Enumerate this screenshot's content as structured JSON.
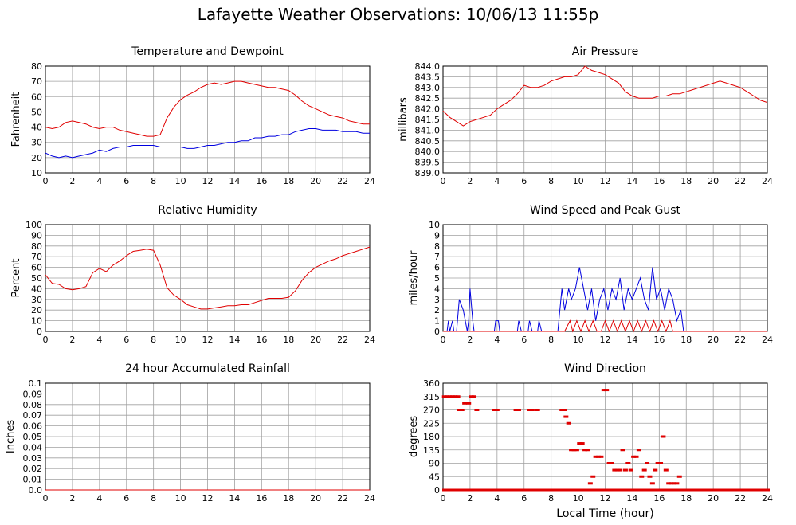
{
  "page": {
    "title": "Lafayette Weather Observations: 10/06/13 11:55p",
    "xlabel_bottom": "Local Time (hour)"
  },
  "colors": {
    "red": "#e00000",
    "blue": "#0000e0",
    "grid": "#a0a0a0"
  },
  "chart_data": [
    {
      "id": "temp",
      "type": "line",
      "title": "Temperature and Dewpoint",
      "ylabel": "Fahrenheit",
      "xlabel": "",
      "xlim": [
        0,
        24
      ],
      "ylim": [
        10,
        80
      ],
      "xticks": [
        0,
        2,
        4,
        6,
        8,
        10,
        12,
        14,
        16,
        18,
        20,
        22,
        24
      ],
      "yticks": [
        10,
        20,
        30,
        40,
        50,
        60,
        70,
        80
      ],
      "grid": true,
      "series": [
        {
          "color": "red",
          "x": [
            0,
            0.5,
            1,
            1.5,
            2,
            2.5,
            3,
            3.5,
            4,
            4.5,
            5,
            5.5,
            6,
            6.5,
            7,
            7.5,
            8,
            8.5,
            9,
            9.5,
            10,
            10.5,
            11,
            11.5,
            12,
            12.5,
            13,
            13.5,
            14,
            14.5,
            15,
            15.5,
            16,
            16.5,
            17,
            17.5,
            18,
            18.5,
            19,
            19.5,
            20,
            20.5,
            21,
            21.5,
            22,
            22.5,
            23,
            23.5,
            24
          ],
          "y": [
            40,
            39,
            40,
            43,
            44,
            43,
            42,
            40,
            39,
            40,
            40,
            38,
            37,
            36,
            35,
            34,
            34,
            35,
            46,
            53,
            58,
            61,
            63,
            66,
            68,
            69,
            68,
            69,
            70,
            70,
            69,
            68,
            67,
            66,
            66,
            65,
            64,
            61,
            57,
            54,
            52,
            50,
            48,
            47,
            46,
            44,
            43,
            42,
            42
          ]
        },
        {
          "color": "blue",
          "x": [
            0,
            0.5,
            1,
            1.5,
            2,
            2.5,
            3,
            3.5,
            4,
            4.5,
            5,
            5.5,
            6,
            6.5,
            7,
            7.5,
            8,
            8.5,
            9,
            9.5,
            10,
            10.5,
            11,
            11.5,
            12,
            12.5,
            13,
            13.5,
            14,
            14.5,
            15,
            15.5,
            16,
            16.5,
            17,
            17.5,
            18,
            18.5,
            19,
            19.5,
            20,
            20.5,
            21,
            21.5,
            22,
            22.5,
            23,
            23.5,
            24
          ],
          "y": [
            23,
            21,
            20,
            21,
            20,
            21,
            22,
            23,
            25,
            24,
            26,
            27,
            27,
            28,
            28,
            28,
            28,
            27,
            27,
            27,
            27,
            26,
            26,
            27,
            28,
            28,
            29,
            30,
            30,
            31,
            31,
            33,
            33,
            34,
            34,
            35,
            35,
            37,
            38,
            39,
            39,
            38,
            38,
            38,
            37,
            37,
            37,
            36,
            36
          ]
        }
      ]
    },
    {
      "id": "pressure",
      "type": "line",
      "title": "Air Pressure",
      "ylabel": "millibars",
      "xlabel": "",
      "xlim": [
        0,
        24
      ],
      "ylim": [
        839.0,
        844.0
      ],
      "xticks": [
        0,
        2,
        4,
        6,
        8,
        10,
        12,
        14,
        16,
        18,
        20,
        22,
        24
      ],
      "yticks": [
        "839.0",
        "839.5",
        "840.0",
        "840.5",
        "841.0",
        "841.5",
        "842.0",
        "842.5",
        "843.0",
        "843.5",
        "844.0"
      ],
      "grid": true,
      "series": [
        {
          "color": "red",
          "x": [
            0,
            0.5,
            1,
            1.5,
            2,
            2.5,
            3,
            3.5,
            4,
            4.5,
            5,
            5.5,
            6,
            6.5,
            7,
            7.5,
            8,
            8.5,
            9,
            9.5,
            10,
            10.5,
            11,
            11.5,
            12,
            12.5,
            13,
            13.5,
            14,
            14.5,
            15,
            15.5,
            16,
            16.5,
            17,
            17.5,
            18,
            18.5,
            19,
            19.5,
            20,
            20.5,
            21,
            21.5,
            22,
            22.5,
            23,
            23.5,
            24
          ],
          "y": [
            841.9,
            841.6,
            841.4,
            841.2,
            841.4,
            841.5,
            841.6,
            841.7,
            842.0,
            842.2,
            842.4,
            842.7,
            843.1,
            843.0,
            843.0,
            843.1,
            843.3,
            843.4,
            843.5,
            843.5,
            843.6,
            844.0,
            843.8,
            843.7,
            843.6,
            843.4,
            843.2,
            842.8,
            842.6,
            842.5,
            842.5,
            842.5,
            842.6,
            842.6,
            842.7,
            842.7,
            842.8,
            842.9,
            843.0,
            843.1,
            843.2,
            843.3,
            843.2,
            843.1,
            843.0,
            842.8,
            842.6,
            842.4,
            842.3
          ]
        }
      ]
    },
    {
      "id": "humidity",
      "type": "line",
      "title": "Relative Humidity",
      "ylabel": "Percent",
      "xlabel": "",
      "xlim": [
        0,
        24
      ],
      "ylim": [
        0,
        100
      ],
      "xticks": [
        0,
        2,
        4,
        6,
        8,
        10,
        12,
        14,
        16,
        18,
        20,
        22,
        24
      ],
      "yticks": [
        0,
        10,
        20,
        30,
        40,
        50,
        60,
        70,
        80,
        90,
        100
      ],
      "grid": true,
      "series": [
        {
          "color": "red",
          "x": [
            0,
            0.5,
            1,
            1.5,
            2,
            2.5,
            3,
            3.5,
            4,
            4.5,
            5,
            5.5,
            6,
            6.5,
            7,
            7.5,
            8,
            8.5,
            9,
            9.5,
            10,
            10.5,
            11,
            11.5,
            12,
            12.5,
            13,
            13.5,
            14,
            14.5,
            15,
            15.5,
            16,
            16.5,
            17,
            17.5,
            18,
            18.5,
            19,
            19.5,
            20,
            20.5,
            21,
            21.5,
            22,
            22.5,
            23,
            23.5,
            24
          ],
          "y": [
            53,
            45,
            44,
            40,
            39,
            40,
            42,
            55,
            59,
            56,
            62,
            66,
            71,
            75,
            76,
            77,
            76,
            62,
            41,
            34,
            30,
            25,
            23,
            21,
            21,
            22,
            23,
            24,
            24,
            25,
            25,
            27,
            29,
            31,
            31,
            31,
            32,
            38,
            48,
            55,
            60,
            63,
            66,
            68,
            71,
            73,
            75,
            77,
            79
          ]
        }
      ]
    },
    {
      "id": "wind",
      "type": "line",
      "title": "Wind Speed and Peak Gust",
      "ylabel": "miles/hour",
      "xlabel": "",
      "xlim": [
        0,
        24
      ],
      "ylim": [
        0,
        10
      ],
      "xticks": [
        0,
        2,
        4,
        6,
        8,
        10,
        12,
        14,
        16,
        18,
        20,
        22,
        24
      ],
      "yticks": [
        0,
        1,
        2,
        3,
        4,
        5,
        6,
        7,
        8,
        9,
        10
      ],
      "grid": true,
      "series": [
        {
          "color": "blue",
          "x": [
            0,
            0.3,
            0.4,
            0.5,
            0.7,
            0.8,
            1.0,
            1.2,
            1.5,
            1.8,
            1.9,
            2.0,
            2.2,
            2.3,
            3.8,
            3.9,
            4.1,
            4.2,
            5.5,
            5.6,
            5.8,
            6.3,
            6.4,
            6.6,
            7.0,
            7.1,
            7.3,
            8.5,
            8.8,
            9.0,
            9.3,
            9.5,
            9.8,
            10.1,
            10.4,
            10.7,
            11.0,
            11.3,
            11.6,
            11.9,
            12.2,
            12.5,
            12.8,
            13.1,
            13.4,
            13.7,
            14.0,
            14.3,
            14.6,
            14.9,
            15.2,
            15.5,
            15.8,
            16.1,
            16.4,
            16.7,
            17.0,
            17.3,
            17.6,
            17.8,
            18,
            20,
            24
          ],
          "y": [
            0,
            0,
            1,
            0,
            1,
            0,
            0,
            3,
            2,
            0,
            1,
            4,
            1,
            0,
            0,
            1,
            1,
            0,
            0,
            1,
            0,
            0,
            1,
            0,
            0,
            1,
            0,
            0,
            4,
            2,
            4,
            3,
            4,
            6,
            4,
            2,
            4,
            1,
            3,
            4,
            2,
            4,
            3,
            5,
            2,
            4,
            3,
            4,
            5,
            3,
            2,
            6,
            3,
            4,
            2,
            4,
            3,
            1,
            2,
            0,
            0,
            0,
            0
          ]
        },
        {
          "color": "red",
          "x": [
            0,
            9,
            9.4,
            9.6,
            9.9,
            10.2,
            10.5,
            10.8,
            11.1,
            11.4,
            11.7,
            12.0,
            12.3,
            12.6,
            12.9,
            13.2,
            13.5,
            13.8,
            14.1,
            14.4,
            14.7,
            15.0,
            15.3,
            15.6,
            15.9,
            16.2,
            16.5,
            16.8,
            17.0,
            24
          ],
          "y": [
            0,
            0,
            1,
            0,
            1,
            0,
            1,
            0,
            1,
            0,
            0,
            1,
            0,
            1,
            0,
            1,
            0,
            1,
            0,
            1,
            0,
            1,
            0,
            1,
            0,
            1,
            0,
            1,
            0,
            0
          ]
        }
      ]
    },
    {
      "id": "rain",
      "type": "line",
      "title": "24 hour Accumulated Rainfall",
      "ylabel": "Inches",
      "xlabel": "",
      "xlim": [
        0,
        24
      ],
      "ylim": [
        0,
        0.1
      ],
      "xticks": [
        0,
        2,
        4,
        6,
        8,
        10,
        12,
        14,
        16,
        18,
        20,
        22,
        24
      ],
      "yticks": [
        "0.0",
        "0.01",
        "0.02",
        "0.03",
        "0.04",
        "0.05",
        "0.06",
        "0.07",
        "0.08",
        "0.09",
        "0.1"
      ],
      "grid": true,
      "series": [
        {
          "color": "red",
          "x": [
            0,
            24
          ],
          "y": [
            0,
            0
          ]
        }
      ]
    },
    {
      "id": "direction",
      "type": "scatter",
      "title": "Wind Direction",
      "ylabel": "degrees",
      "xlabel": "Local Time (hour)",
      "xlim": [
        0,
        24
      ],
      "ylim": [
        0,
        360
      ],
      "xticks": [
        0,
        2,
        4,
        6,
        8,
        10,
        12,
        14,
        16,
        18,
        20,
        22,
        24
      ],
      "yticks": [
        0,
        45,
        90,
        135,
        180,
        225,
        270,
        315,
        360
      ],
      "grid": true,
      "series": [
        {
          "color": "red",
          "x": [
            0.1,
            0.3,
            0.5,
            0.7,
            0.9,
            1.1,
            1.2,
            1.4,
            1.6,
            1.9,
            2.1,
            2.3,
            2.5,
            3.8,
            4.0,
            5.4,
            5.6,
            6.4,
            6.6,
            7.0,
            8.8,
            9.0,
            9.1,
            9.3,
            9.5,
            9.7,
            9.9,
            10.1,
            10.3,
            10.5,
            10.7,
            10.9,
            11.1,
            11.3,
            11.5,
            11.7,
            11.9,
            12.1,
            12.3,
            12.5,
            12.7,
            12.9,
            13.1,
            13.3,
            13.5,
            13.7,
            13.9,
            14.1,
            14.3,
            14.5,
            14.7,
            14.9,
            15.1,
            15.3,
            15.5,
            15.7,
            15.9,
            16.1,
            16.3,
            16.5,
            16.7,
            16.9,
            17.1,
            17.3,
            17.5
          ],
          "y": [
            315,
            315,
            315,
            315,
            315,
            315,
            270,
            270,
            292,
            292,
            315,
            315,
            270,
            270,
            270,
            270,
            270,
            270,
            270,
            270,
            270,
            270,
            247,
            225,
            135,
            135,
            135,
            157,
            157,
            135,
            135,
            22,
            45,
            112,
            112,
            112,
            337,
            337,
            90,
            90,
            67,
            67,
            67,
            135,
            67,
            90,
            67,
            112,
            112,
            135,
            45,
            67,
            90,
            45,
            22,
            67,
            90,
            90,
            180,
            67,
            22,
            22,
            22,
            22,
            45
          ]
        },
        {
          "color": "red",
          "x": [
            0,
            1,
            2,
            3,
            4,
            5,
            6,
            7,
            8,
            9,
            17,
            18,
            19,
            20,
            21,
            22,
            23,
            24
          ],
          "y": [
            0,
            0,
            0,
            0,
            0,
            0,
            0,
            0,
            0,
            0,
            0,
            0,
            0,
            0,
            0,
            0,
            0,
            0
          ]
        }
      ]
    }
  ]
}
